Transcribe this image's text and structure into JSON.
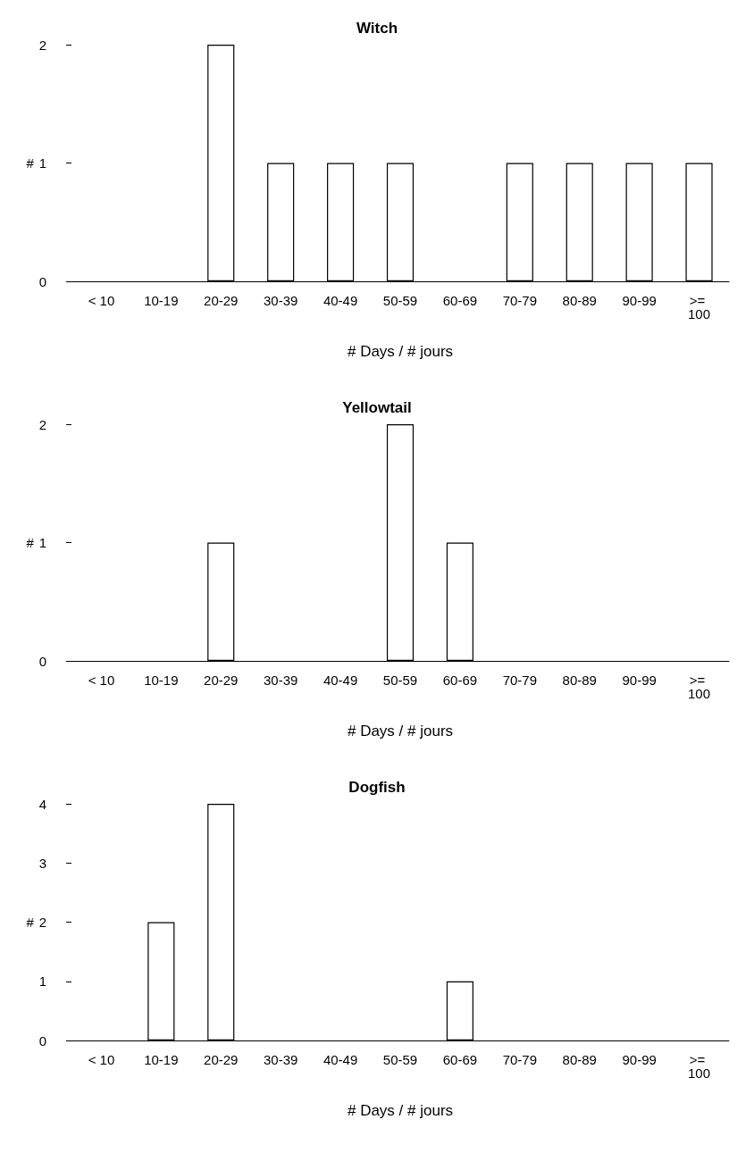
{
  "chart_data": [
    {
      "type": "bar",
      "title": "Witch",
      "xlabel": "# Days / # jours",
      "ylabel": "#",
      "categories": [
        "< 10",
        "10-19",
        "20-29",
        "30-39",
        "40-49",
        "50-59",
        "60-69",
        "70-79",
        "80-89",
        "90-99",
        ">= 100"
      ],
      "values": [
        0,
        0,
        2,
        1,
        1,
        1,
        0,
        1,
        1,
        1,
        1
      ],
      "color": "#ffffff",
      "ylim": [
        0,
        2
      ],
      "yticks": [
        0,
        1,
        2
      ],
      "grid": false
    },
    {
      "type": "bar",
      "title": "Yellowtail",
      "xlabel": "# Days / # jours",
      "ylabel": "#",
      "categories": [
        "< 10",
        "10-19",
        "20-29",
        "30-39",
        "40-49",
        "50-59",
        "60-69",
        "70-79",
        "80-89",
        "90-99",
        ">= 100"
      ],
      "values": [
        0,
        0,
        1,
        0,
        0,
        2,
        1,
        0,
        0,
        0,
        0
      ],
      "color": "#ffffff",
      "ylim": [
        0,
        2
      ],
      "yticks": [
        0,
        1,
        2
      ],
      "grid": false
    },
    {
      "type": "bar",
      "title": "Dogfish",
      "xlabel": "# Days / # jours",
      "ylabel": "#",
      "categories": [
        "< 10",
        "10-19",
        "20-29",
        "30-39",
        "40-49",
        "50-59",
        "60-69",
        "70-79",
        "80-89",
        "90-99",
        ">= 100"
      ],
      "values": [
        0,
        2,
        4,
        0,
        0,
        0,
        1,
        0,
        0,
        0,
        0
      ],
      "color": "#ffffff",
      "ylim": [
        0,
        4
      ],
      "yticks": [
        0,
        1,
        2,
        3,
        4
      ],
      "grid": false
    }
  ]
}
